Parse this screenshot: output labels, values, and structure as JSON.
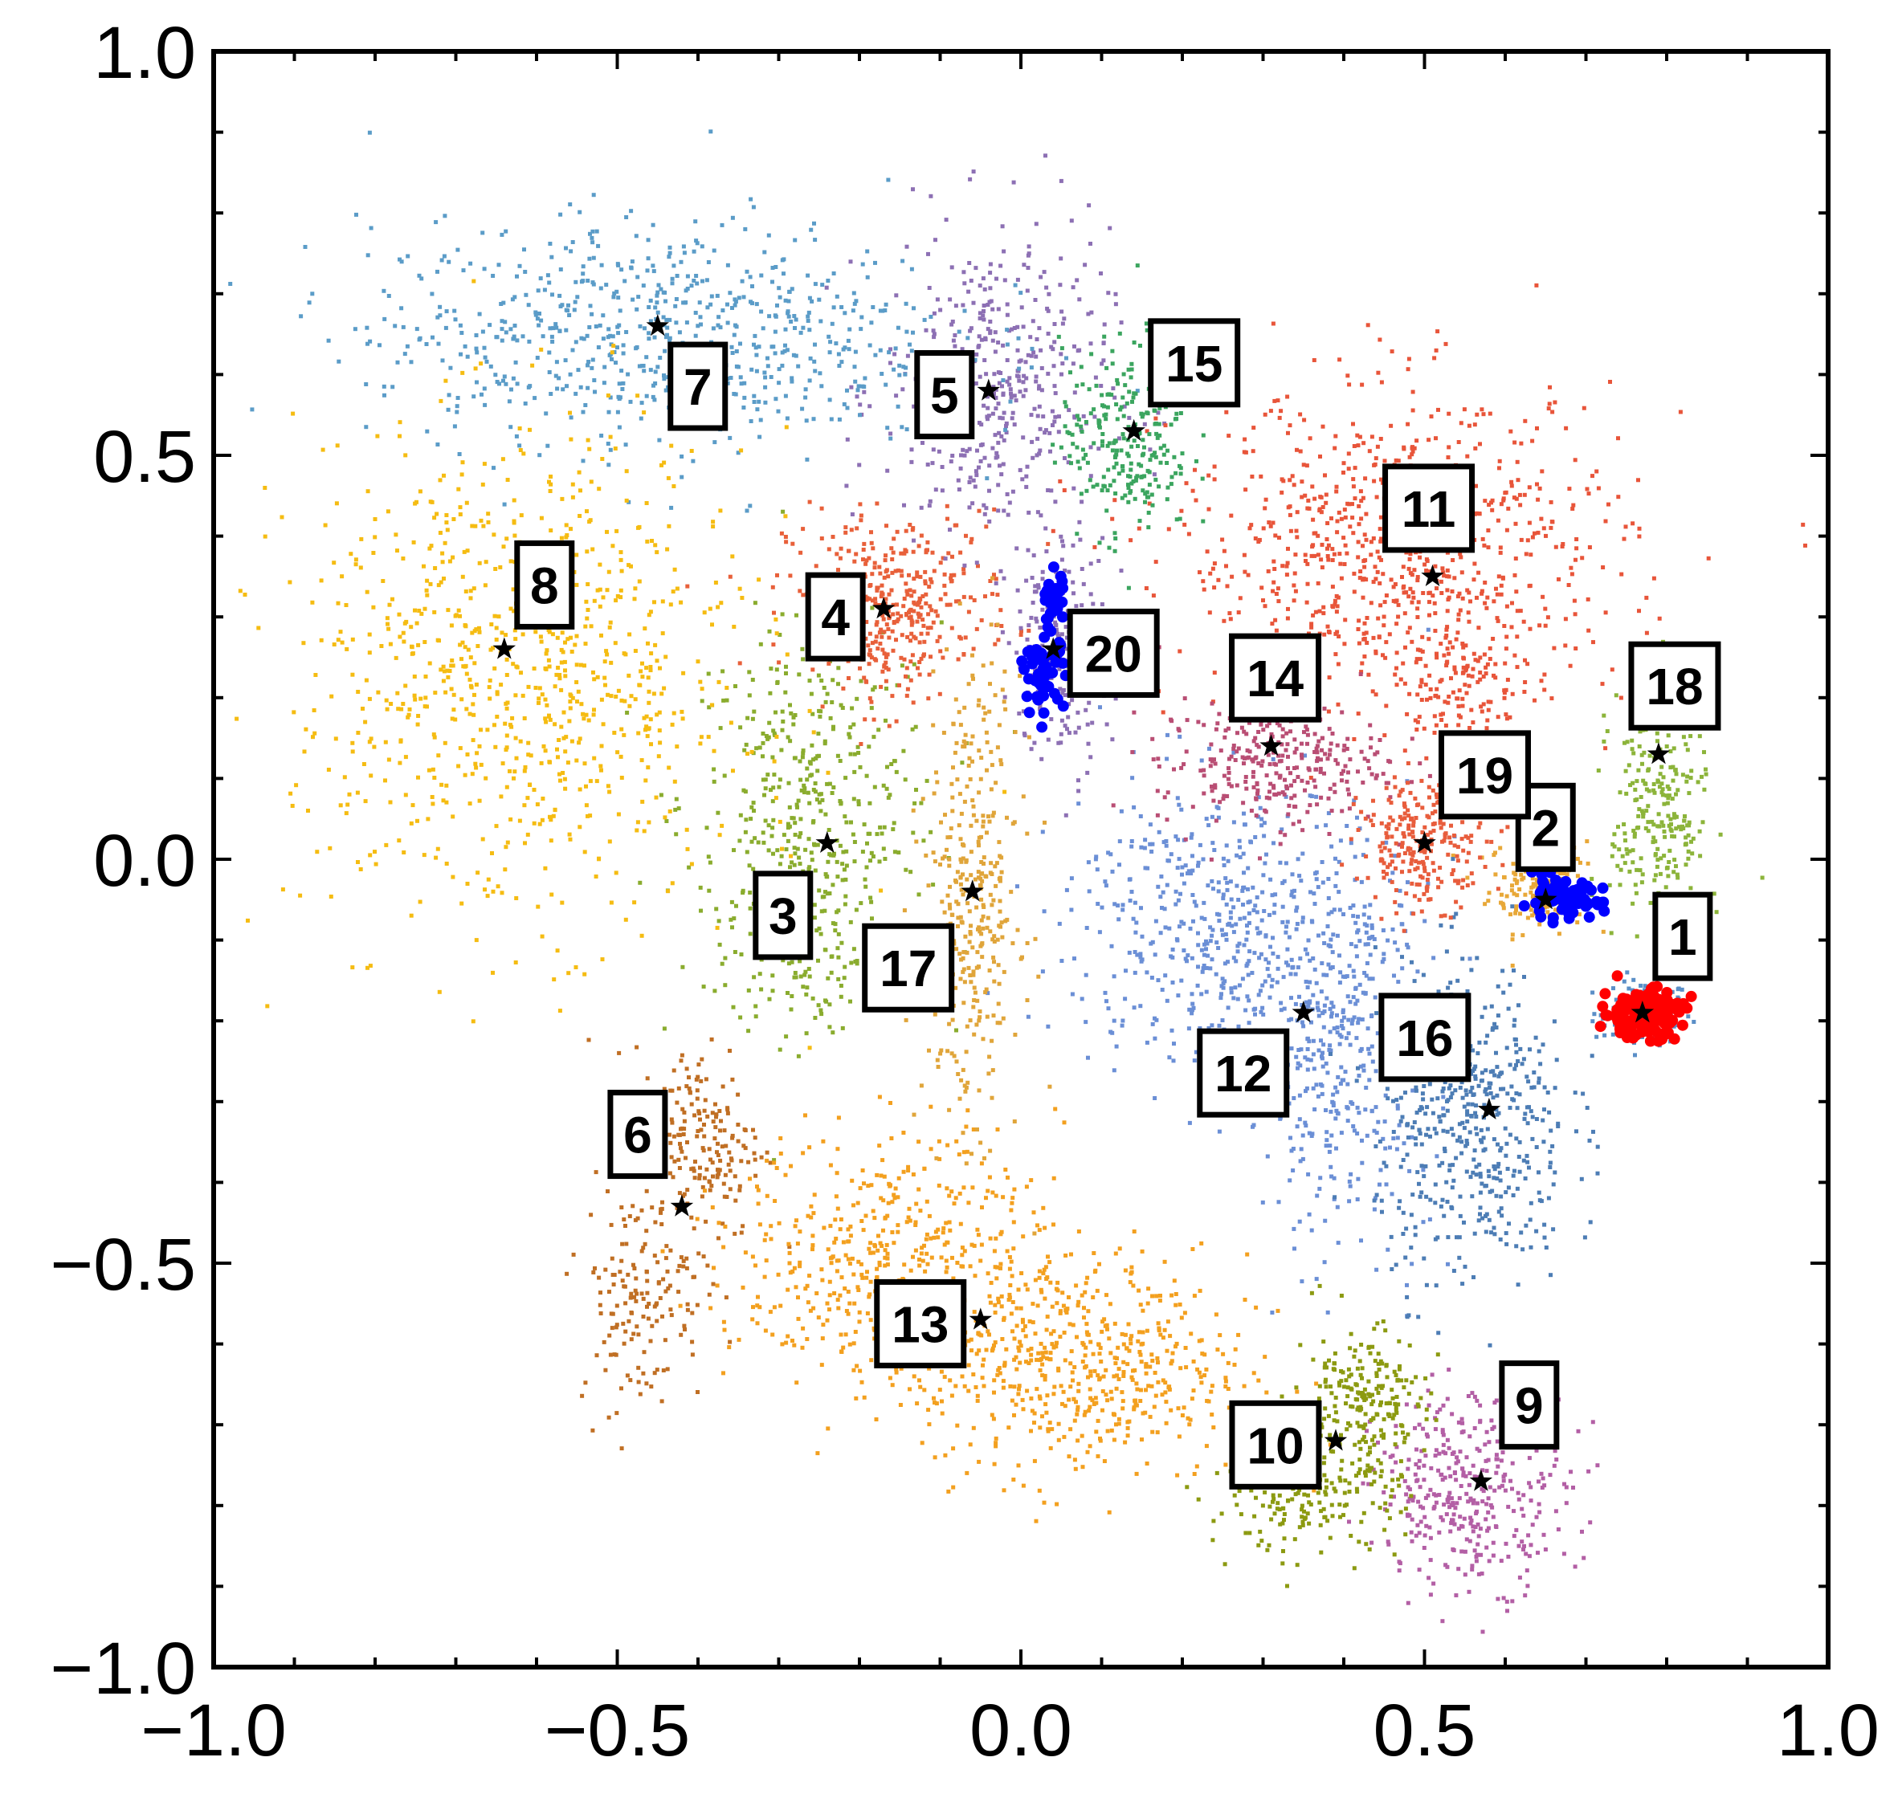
{
  "chart_data": {
    "type": "scatter",
    "title": "",
    "xlabel": "",
    "ylabel": "",
    "xlim": [
      -1.0,
      1.0
    ],
    "ylim": [
      -1.0,
      1.0
    ],
    "grid": false,
    "legend": "none",
    "x_ticks": [
      -1.0,
      -0.5,
      0.0,
      0.5,
      1.0
    ],
    "y_ticks": [
      -1.0,
      -0.5,
      0.0,
      0.5,
      1.0
    ],
    "x_tick_labels": [
      "−1.0",
      "−0.5",
      "0.0",
      "0.5",
      "1.0"
    ],
    "y_tick_labels": [
      "−1.0",
      "−0.5",
      "0.0",
      "0.5",
      "1.0"
    ],
    "centroid_marker": "star",
    "clusters": [
      {
        "label": "1",
        "color": "#5b8fc7",
        "centroid": [
          0.77,
          -0.19
        ],
        "blobs": [
          {
            "center": [
              0.77,
              -0.19
            ],
            "spread": [
              0.03,
              0.02
            ],
            "count": 120
          }
        ]
      },
      {
        "label": "2",
        "color": "#e8a838",
        "centroid": [
          0.65,
          -0.05
        ],
        "blobs": [
          {
            "center": [
              0.64,
              -0.03
            ],
            "spread": [
              0.03,
              0.03
            ],
            "count": 160
          }
        ]
      },
      {
        "label": "3",
        "color": "#8aac2e",
        "centroid": [
          -0.24,
          0.02
        ],
        "blobs": [
          {
            "center": [
              -0.26,
              0.07
            ],
            "spread": [
              0.08,
              0.11
            ],
            "count": 380
          },
          {
            "center": [
              -0.28,
              -0.08
            ],
            "spread": [
              0.04,
              0.07
            ],
            "count": 170
          }
        ]
      },
      {
        "label": "4",
        "color": "#e8603a",
        "centroid": [
          -0.17,
          0.31
        ],
        "blobs": [
          {
            "center": [
              -0.15,
              0.33
            ],
            "spread": [
              0.07,
              0.05
            ],
            "count": 280
          },
          {
            "center": [
              -0.16,
              0.26
            ],
            "spread": [
              0.03,
              0.04
            ],
            "count": 90
          }
        ]
      },
      {
        "label": "5",
        "color": "#8d70b4",
        "centroid": [
          -0.04,
          0.58
        ],
        "blobs": [
          {
            "center": [
              -0.03,
              0.58
            ],
            "spread": [
              0.07,
              0.1
            ],
            "count": 420
          }
        ]
      },
      {
        "label": "6",
        "color": "#c06f24",
        "centroid": [
          -0.42,
          -0.43
        ],
        "blobs": [
          {
            "center": [
              -0.4,
              -0.35
            ],
            "spread": [
              0.04,
              0.06
            ],
            "count": 200
          },
          {
            "center": [
              -0.47,
              -0.54
            ],
            "spread": [
              0.04,
              0.07
            ],
            "count": 150
          }
        ]
      },
      {
        "label": "7",
        "color": "#5b9cc8",
        "centroid": [
          -0.45,
          0.66
        ],
        "blobs": [
          {
            "center": [
              -0.45,
              0.65
            ],
            "spread": [
              0.18,
              0.07
            ],
            "count": 720
          }
        ]
      },
      {
        "label": "8",
        "color": "#f5bc12",
        "centroid": [
          -0.64,
          0.26
        ],
        "blobs": [
          {
            "center": [
              -0.62,
              0.22
            ],
            "spread": [
              0.14,
              0.15
            ],
            "count": 850
          }
        ]
      },
      {
        "label": "9",
        "color": "#b35fa5",
        "centroid": [
          0.57,
          -0.77
        ],
        "blobs": [
          {
            "center": [
              0.56,
              -0.78
            ],
            "spread": [
              0.06,
              0.06
            ],
            "count": 360
          }
        ]
      },
      {
        "label": "10",
        "color": "#8c9a11",
        "centroid": [
          0.39,
          -0.72
        ],
        "blobs": [
          {
            "center": [
              0.42,
              -0.68
            ],
            "spread": [
              0.04,
              0.05
            ],
            "count": 240
          },
          {
            "center": [
              0.35,
              -0.8
            ],
            "spread": [
              0.06,
              0.03
            ],
            "count": 150
          }
        ]
      },
      {
        "label": "11",
        "color": "#e8553a",
        "centroid": [
          0.51,
          0.35
        ],
        "blobs": [
          {
            "center": [
              0.47,
              0.38
            ],
            "spread": [
              0.14,
              0.1
            ],
            "count": 800
          },
          {
            "center": [
              0.55,
              0.22
            ],
            "spread": [
              0.04,
              0.04
            ],
            "count": 120
          }
        ]
      },
      {
        "label": "12",
        "color": "#6b8fd6",
        "centroid": [
          0.35,
          -0.19
        ],
        "blobs": [
          {
            "center": [
              0.24,
              -0.08
            ],
            "spread": [
              0.09,
              0.09
            ],
            "count": 480
          },
          {
            "center": [
              0.39,
              -0.23
            ],
            "spread": [
              0.06,
              0.12
            ],
            "count": 420
          }
        ]
      },
      {
        "label": "13",
        "color": "#f3a01f",
        "centroid": [
          -0.05,
          -0.57
        ],
        "blobs": [
          {
            "center": [
              -0.15,
              -0.5
            ],
            "spread": [
              0.1,
              0.08
            ],
            "count": 520
          },
          {
            "center": [
              0.08,
              -0.63
            ],
            "spread": [
              0.1,
              0.07
            ],
            "count": 520
          }
        ]
      },
      {
        "label": "14",
        "color": "#b94e74",
        "centroid": [
          0.31,
          0.14
        ],
        "blobs": [
          {
            "center": [
              0.31,
              0.12
            ],
            "spread": [
              0.07,
              0.04
            ],
            "count": 300
          }
        ]
      },
      {
        "label": "15",
        "color": "#3ba55f",
        "centroid": [
          0.14,
          0.53
        ],
        "blobs": [
          {
            "center": [
              0.13,
              0.52
            ],
            "spread": [
              0.04,
              0.06
            ],
            "count": 240
          }
        ]
      },
      {
        "label": "16",
        "color": "#4d7db5",
        "centroid": [
          0.58,
          -0.31
        ],
        "blobs": [
          {
            "center": [
              0.56,
              -0.33
            ],
            "spread": [
              0.06,
              0.1
            ],
            "count": 480
          }
        ]
      },
      {
        "label": "17",
        "color": "#e0a53a",
        "centroid": [
          -0.06,
          -0.04
        ],
        "blobs": [
          {
            "center": [
              -0.06,
              -0.04
            ],
            "spread": [
              0.03,
              0.14
            ],
            "count": 340
          }
        ]
      },
      {
        "label": "18",
        "color": "#8cb43a",
        "centroid": [
          0.79,
          0.13
        ],
        "blobs": [
          {
            "center": [
              0.79,
              0.05
            ],
            "spread": [
              0.03,
              0.08
            ],
            "count": 250
          }
        ]
      },
      {
        "label": "19",
        "color": "#e85d3c",
        "centroid": [
          0.5,
          0.02
        ],
        "blobs": [
          {
            "center": [
              0.5,
              0.02
            ],
            "spread": [
              0.04,
              0.04
            ],
            "count": 240
          }
        ]
      },
      {
        "label": "20",
        "color": "#8d70b4",
        "centroid": [
          0.04,
          0.26
        ],
        "blobs": [
          {
            "center": [
              0.05,
              0.26
            ],
            "spread": [
              0.03,
              0.07
            ],
            "count": 200
          }
        ]
      }
    ],
    "highlighted_points": [
      {
        "color": "#ff0000",
        "center": [
          0.77,
          -0.19
        ],
        "spread": [
          0.025,
          0.015
        ],
        "count": 150
      },
      {
        "color": "#0000ff",
        "center": [
          0.67,
          -0.05
        ],
        "spread": [
          0.025,
          0.012
        ],
        "count": 70
      },
      {
        "color": "#0000ff",
        "center": [
          0.04,
          0.32
        ],
        "spread": [
          0.007,
          0.02
        ],
        "count": 40
      },
      {
        "color": "#0000ff",
        "center": [
          0.03,
          0.23
        ],
        "spread": [
          0.012,
          0.02
        ],
        "count": 50
      }
    ]
  }
}
